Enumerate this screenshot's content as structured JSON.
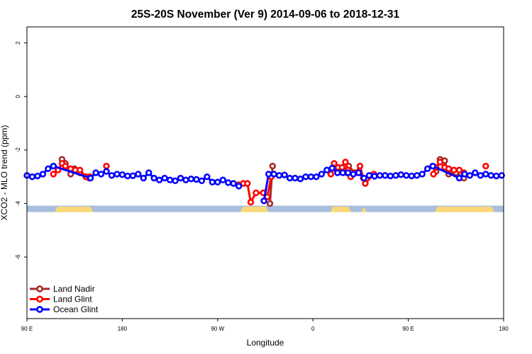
{
  "chart_data": {
    "type": "line",
    "title": "25S-20S November (Ver 9)   2014-09-06 to 2018-12-31",
    "xlabel": "Longitude",
    "ylabel": "XCO2 - MLO trend (ppm)",
    "xlim": [
      0,
      720
    ],
    "ylim": [
      -8.3,
      2.6
    ],
    "x_ticks": [
      {
        "value": 0,
        "label": "90 E"
      },
      {
        "value": 144,
        "label": "180"
      },
      {
        "value": 288,
        "label": "90 W"
      },
      {
        "value": 432,
        "label": "0"
      },
      {
        "value": 576,
        "label": "90 E"
      },
      {
        "value": 720,
        "label": "180"
      }
    ],
    "y_ticks": [
      {
        "value": 2,
        "label": "2"
      },
      {
        "value": 0,
        "label": "0"
      },
      {
        "value": -2,
        "label": "-2"
      },
      {
        "value": -4,
        "label": "-4"
      },
      {
        "value": -6,
        "label": "-6"
      }
    ],
    "surface_band": {
      "y_range": [
        -4.32,
        -4.08
      ],
      "ocean_color": "#a8bedd",
      "land_color": "#fbd877",
      "land_segments": [
        [
          42,
          100
        ],
        [
          322,
          365
        ],
        [
          458,
          490
        ],
        [
          505,
          513
        ],
        [
          616,
          706
        ]
      ]
    },
    "series": [
      {
        "name": "Land Nadir",
        "color": "#a52a2a",
        "segments": [
          [
            [
              53,
              -2.35
            ],
            [
              58,
              -2.5
            ],
            [
              66,
              -2.9
            ],
            [
              72,
              -2.7
            ],
            [
              80,
              -2.85
            ],
            [
              89,
              -3.0
            ],
            [
              94,
              -3.05
            ]
          ],
          [
            [
              367,
              -4.0
            ],
            [
              371,
              -2.6
            ]
          ],
          [
            [
              470,
              -2.8
            ],
            [
              478,
              -2.75
            ],
            [
              483,
              -2.85
            ],
            [
              486,
              -2.6
            ],
            [
              495,
              -2.85
            ]
          ],
          [
            [
              618,
              -2.8
            ],
            [
              624,
              -2.35
            ],
            [
              631,
              -2.4
            ],
            [
              637,
              -2.9
            ],
            [
              648,
              -2.85
            ],
            [
              660,
              -3.05
            ]
          ]
        ]
      },
      {
        "name": "Land Glint",
        "color": "#ff0000",
        "segments": [
          [
            [
              40,
              -2.9
            ],
            [
              47,
              -2.75
            ],
            [
              53,
              -2.5
            ],
            [
              58,
              -2.6
            ],
            [
              66,
              -2.7
            ],
            [
              73,
              -2.75
            ],
            [
              80,
              -2.75
            ],
            [
              89,
              -3.0
            ],
            [
              95,
              -3.0
            ]
          ],
          [
            [
              120,
              -2.6
            ]
          ],
          [
            [
              320,
              -3.3
            ],
            [
              327,
              -3.25
            ],
            [
              333,
              -3.25
            ],
            [
              338,
              -3.95
            ],
            [
              346,
              -3.6
            ],
            [
              357,
              -3.6
            ],
            [
              363,
              -3.75
            ],
            [
              369,
              -3.0
            ]
          ],
          [
            [
              459,
              -2.9
            ],
            [
              464,
              -2.5
            ],
            [
              470,
              -2.65
            ],
            [
              476,
              -2.65
            ],
            [
              481,
              -2.45
            ],
            [
              485,
              -2.75
            ],
            [
              489,
              -3.0
            ],
            [
              496,
              -2.85
            ],
            [
              503,
              -2.6
            ],
            [
              508,
              -3.05
            ],
            [
              511,
              -3.25
            ],
            [
              524,
              -2.9
            ]
          ],
          [
            [
              614,
              -2.9
            ],
            [
              618,
              -2.65
            ],
            [
              624,
              -2.45
            ],
            [
              631,
              -2.65
            ],
            [
              637,
              -2.7
            ],
            [
              645,
              -2.75
            ],
            [
              653,
              -2.75
            ],
            [
              660,
              -2.85
            ]
          ],
          [
            [
              693,
              -2.6
            ]
          ]
        ]
      },
      {
        "name": "Ocean Glint",
        "color": "#0000ff",
        "segments": [
          [
            [
              0,
              -2.95
            ],
            [
              8,
              -3.0
            ],
            [
              16,
              -2.97
            ],
            [
              24,
              -2.9
            ],
            [
              32,
              -2.7
            ],
            [
              40,
              -2.6
            ],
            [
              96,
              -3.05
            ],
            [
              104,
              -2.85
            ],
            [
              112,
              -2.9
            ],
            [
              120,
              -2.8
            ],
            [
              128,
              -2.95
            ],
            [
              136,
              -2.9
            ],
            [
              144,
              -2.92
            ],
            [
              152,
              -2.97
            ],
            [
              160,
              -2.96
            ],
            [
              168,
              -2.9
            ],
            [
              176,
              -3.05
            ],
            [
              184,
              -2.85
            ],
            [
              192,
              -3.05
            ],
            [
              200,
              -3.12
            ],
            [
              208,
              -3.05
            ],
            [
              216,
              -3.12
            ],
            [
              224,
              -3.15
            ],
            [
              232,
              -3.05
            ],
            [
              240,
              -3.12
            ],
            [
              248,
              -3.08
            ],
            [
              256,
              -3.1
            ],
            [
              264,
              -3.15
            ],
            [
              272,
              -3.0
            ],
            [
              280,
              -3.2
            ],
            [
              288,
              -3.2
            ],
            [
              296,
              -3.12
            ],
            [
              304,
              -3.22
            ],
            [
              312,
              -3.25
            ],
            [
              320,
              -3.35
            ]
          ],
          [
            [
              358,
              -3.9
            ],
            [
              365,
              -2.9
            ],
            [
              373,
              -2.9
            ],
            [
              381,
              -2.95
            ],
            [
              389,
              -2.93
            ],
            [
              397,
              -3.05
            ],
            [
              405,
              -3.05
            ],
            [
              413,
              -3.08
            ],
            [
              421,
              -3.0
            ],
            [
              429,
              -3.0
            ],
            [
              437,
              -3.0
            ],
            [
              445,
              -2.9
            ],
            [
              453,
              -2.75
            ],
            [
              461,
              -2.68
            ],
            [
              469,
              -2.85
            ],
            [
              477,
              -2.85
            ],
            [
              485,
              -2.85
            ],
            [
              493,
              -2.9
            ],
            [
              501,
              -2.85
            ],
            [
              509,
              -3.05
            ],
            [
              517,
              -2.95
            ],
            [
              525,
              -2.98
            ],
            [
              533,
              -2.95
            ],
            [
              541,
              -2.95
            ],
            [
              549,
              -2.97
            ],
            [
              557,
              -2.95
            ],
            [
              565,
              -2.92
            ],
            [
              573,
              -2.95
            ],
            [
              581,
              -2.97
            ],
            [
              589,
              -2.95
            ],
            [
              597,
              -2.9
            ],
            [
              605,
              -2.7
            ],
            [
              613,
              -2.6
            ],
            [
              653,
              -3.05
            ],
            [
              661,
              -2.9
            ],
            [
              669,
              -2.95
            ],
            [
              677,
              -2.85
            ],
            [
              685,
              -2.95
            ],
            [
              693,
              -2.9
            ],
            [
              701,
              -2.95
            ],
            [
              709,
              -2.97
            ],
            [
              717,
              -2.95
            ]
          ]
        ]
      }
    ],
    "legend": {
      "position": "bottom-left",
      "entries": [
        {
          "name": "Land Nadir",
          "color": "#a52a2a"
        },
        {
          "name": "Land Glint",
          "color": "#ff0000"
        },
        {
          "name": "Ocean Glint",
          "color": "#0000ff"
        }
      ]
    }
  }
}
